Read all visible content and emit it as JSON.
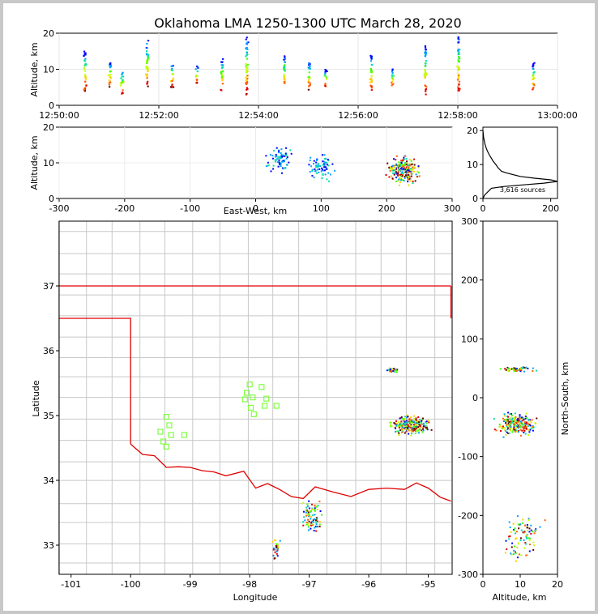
{
  "figure": {
    "title": "Oklahoma LMA 1250-1300 UTC March 28, 2020",
    "source_count_label": "3,616 sources"
  },
  "colors": {
    "state_border": "#e00000",
    "county_lines": "#c8c8c8",
    "stations": "#80ff40",
    "height_curve": "#000000",
    "source_colormap": [
      "#0000ff",
      "#00a0ff",
      "#00e0a0",
      "#40ff00",
      "#c0ff00",
      "#ffd000",
      "#ff6000",
      "#e00000",
      "#600000"
    ]
  },
  "chart_data": [
    {
      "id": "time-height",
      "type": "scatter",
      "title": "",
      "xlabel": "",
      "ylabel": "Altitude, km",
      "xlim": [
        "12:50:00",
        "13:00:00"
      ],
      "ylim": [
        0,
        20
      ],
      "xticks": [
        "12:50:00",
        "12:52:00",
        "12:54:00",
        "12:56:00",
        "12:58:00",
        "13:00:00"
      ],
      "yticks": [
        0,
        10,
        20
      ],
      "grid": true,
      "flash_columns": [
        {
          "time": "12:50:30",
          "alt_min": 4,
          "alt_max": 15
        },
        {
          "time": "12:51:00",
          "alt_min": 5,
          "alt_max": 12
        },
        {
          "time": "12:51:15",
          "alt_min": 3,
          "alt_max": 10
        },
        {
          "time": "12:51:45",
          "alt_min": 5,
          "alt_max": 18
        },
        {
          "time": "12:52:15",
          "alt_min": 5,
          "alt_max": 12
        },
        {
          "time": "12:52:45",
          "alt_min": 6,
          "alt_max": 11
        },
        {
          "time": "12:53:15",
          "alt_min": 4,
          "alt_max": 13
        },
        {
          "time": "12:53:45",
          "alt_min": 3,
          "alt_max": 19
        },
        {
          "time": "12:54:30",
          "alt_min": 4,
          "alt_max": 14
        },
        {
          "time": "12:55:00",
          "alt_min": 4,
          "alt_max": 12
        },
        {
          "time": "12:55:20",
          "alt_min": 5,
          "alt_max": 10
        },
        {
          "time": "12:56:15",
          "alt_min": 4,
          "alt_max": 14
        },
        {
          "time": "12:56:40",
          "alt_min": 5,
          "alt_max": 10
        },
        {
          "time": "12:57:20",
          "alt_min": 3,
          "alt_max": 17
        },
        {
          "time": "12:58:00",
          "alt_min": 4,
          "alt_max": 19
        },
        {
          "time": "12:59:30",
          "alt_min": 4,
          "alt_max": 12
        }
      ]
    },
    {
      "id": "ew-altitude",
      "type": "scatter",
      "title": "",
      "xlabel": "East-West, km",
      "ylabel": "Altitude, km",
      "xlim": [
        -300,
        300
      ],
      "ylim": [
        0,
        20
      ],
      "xticks": [
        -300,
        -200,
        -100,
        0,
        100,
        200,
        300
      ],
      "yticks": [
        0,
        10,
        20
      ],
      "grid": true,
      "clusters": [
        {
          "x": 35,
          "alt": 11,
          "spread_x": 25,
          "spread_alt": 5
        },
        {
          "x": 100,
          "alt": 9,
          "spread_x": 25,
          "spread_alt": 5
        },
        {
          "x": 225,
          "alt": 8,
          "spread_x": 30,
          "spread_alt": 5
        }
      ]
    },
    {
      "id": "altitude-histogram",
      "type": "line",
      "title": "",
      "xlabel": "",
      "ylabel": "",
      "xlim": [
        0,
        220
      ],
      "ylim": [
        0,
        21
      ],
      "xticks": [
        0,
        200
      ],
      "yticks": [
        0,
        10,
        20
      ],
      "grid": false,
      "x": [
        0,
        5,
        15,
        25,
        60,
        120,
        180,
        220,
        200,
        150,
        110,
        90,
        70,
        55,
        45,
        38,
        30,
        24,
        18,
        13,
        9,
        6,
        4,
        2,
        1,
        0
      ],
      "y": [
        0,
        1,
        2,
        3,
        3.5,
        4,
        4.5,
        5,
        5.5,
        6,
        6.5,
        7,
        7.5,
        8,
        9,
        10,
        11,
        12,
        13,
        14,
        15,
        16,
        17,
        18,
        19,
        20
      ]
    },
    {
      "id": "plan-view",
      "type": "scatter",
      "title": "",
      "xlabel": "Longitude",
      "ylabel": "Latitude",
      "xlim": [
        -101.2,
        -94.6
      ],
      "ylim": [
        32.55,
        38.0
      ],
      "xticks": [
        -101,
        -100,
        -99,
        -98,
        -97,
        -96,
        -95
      ],
      "yticks": [
        33,
        34,
        35,
        36,
        37
      ],
      "grid": false,
      "stations": [
        {
          "lon": -99.4,
          "lat": 34.98
        },
        {
          "lon": -99.5,
          "lat": 34.75
        },
        {
          "lon": -99.35,
          "lat": 34.85
        },
        {
          "lon": -99.45,
          "lat": 34.6
        },
        {
          "lon": -99.32,
          "lat": 34.7
        },
        {
          "lon": -99.4,
          "lat": 34.52
        },
        {
          "lon": -99.1,
          "lat": 34.7
        },
        {
          "lon": -98.0,
          "lat": 35.48
        },
        {
          "lon": -98.05,
          "lat": 35.35
        },
        {
          "lon": -98.08,
          "lat": 35.25
        },
        {
          "lon": -97.95,
          "lat": 35.28
        },
        {
          "lon": -97.8,
          "lat": 35.44
        },
        {
          "lon": -97.72,
          "lat": 35.26
        },
        {
          "lon": -97.75,
          "lat": 35.15
        },
        {
          "lon": -97.55,
          "lat": 35.15
        },
        {
          "lon": -97.98,
          "lat": 35.12
        },
        {
          "lon": -97.93,
          "lat": 35.02
        }
      ],
      "source_clusters": [
        {
          "lon": -95.6,
          "lat": 35.7,
          "spread_lon": 0.12,
          "spread_lat": 0.05
        },
        {
          "lon": -95.3,
          "lat": 34.85,
          "spread_lon": 0.45,
          "spread_lat": 0.18
        },
        {
          "lon": -96.95,
          "lat": 33.45,
          "spread_lon": 0.25,
          "spread_lat": 0.3
        },
        {
          "lon": -97.55,
          "lat": 32.95,
          "spread_lon": 0.08,
          "spread_lat": 0.25
        }
      ]
    },
    {
      "id": "ns-altitude",
      "type": "scatter",
      "title": "",
      "xlabel": "Altitude, km",
      "ylabel": "North-South, km",
      "xlim": [
        0,
        20
      ],
      "ylim": [
        -300,
        300
      ],
      "xticks": [
        0,
        10,
        20
      ],
      "yticks": [
        -300,
        -200,
        -100,
        0,
        100,
        200,
        300
      ],
      "grid": false,
      "clusters": [
        {
          "alt": 9,
          "ns": 48,
          "spread_alt": 6,
          "spread_ns": 6
        },
        {
          "alt": 9,
          "ns": -45,
          "spread_alt": 7,
          "spread_ns": 25
        },
        {
          "alt": 11,
          "ns": -235,
          "spread_alt": 7,
          "spread_ns": 55
        }
      ]
    }
  ]
}
